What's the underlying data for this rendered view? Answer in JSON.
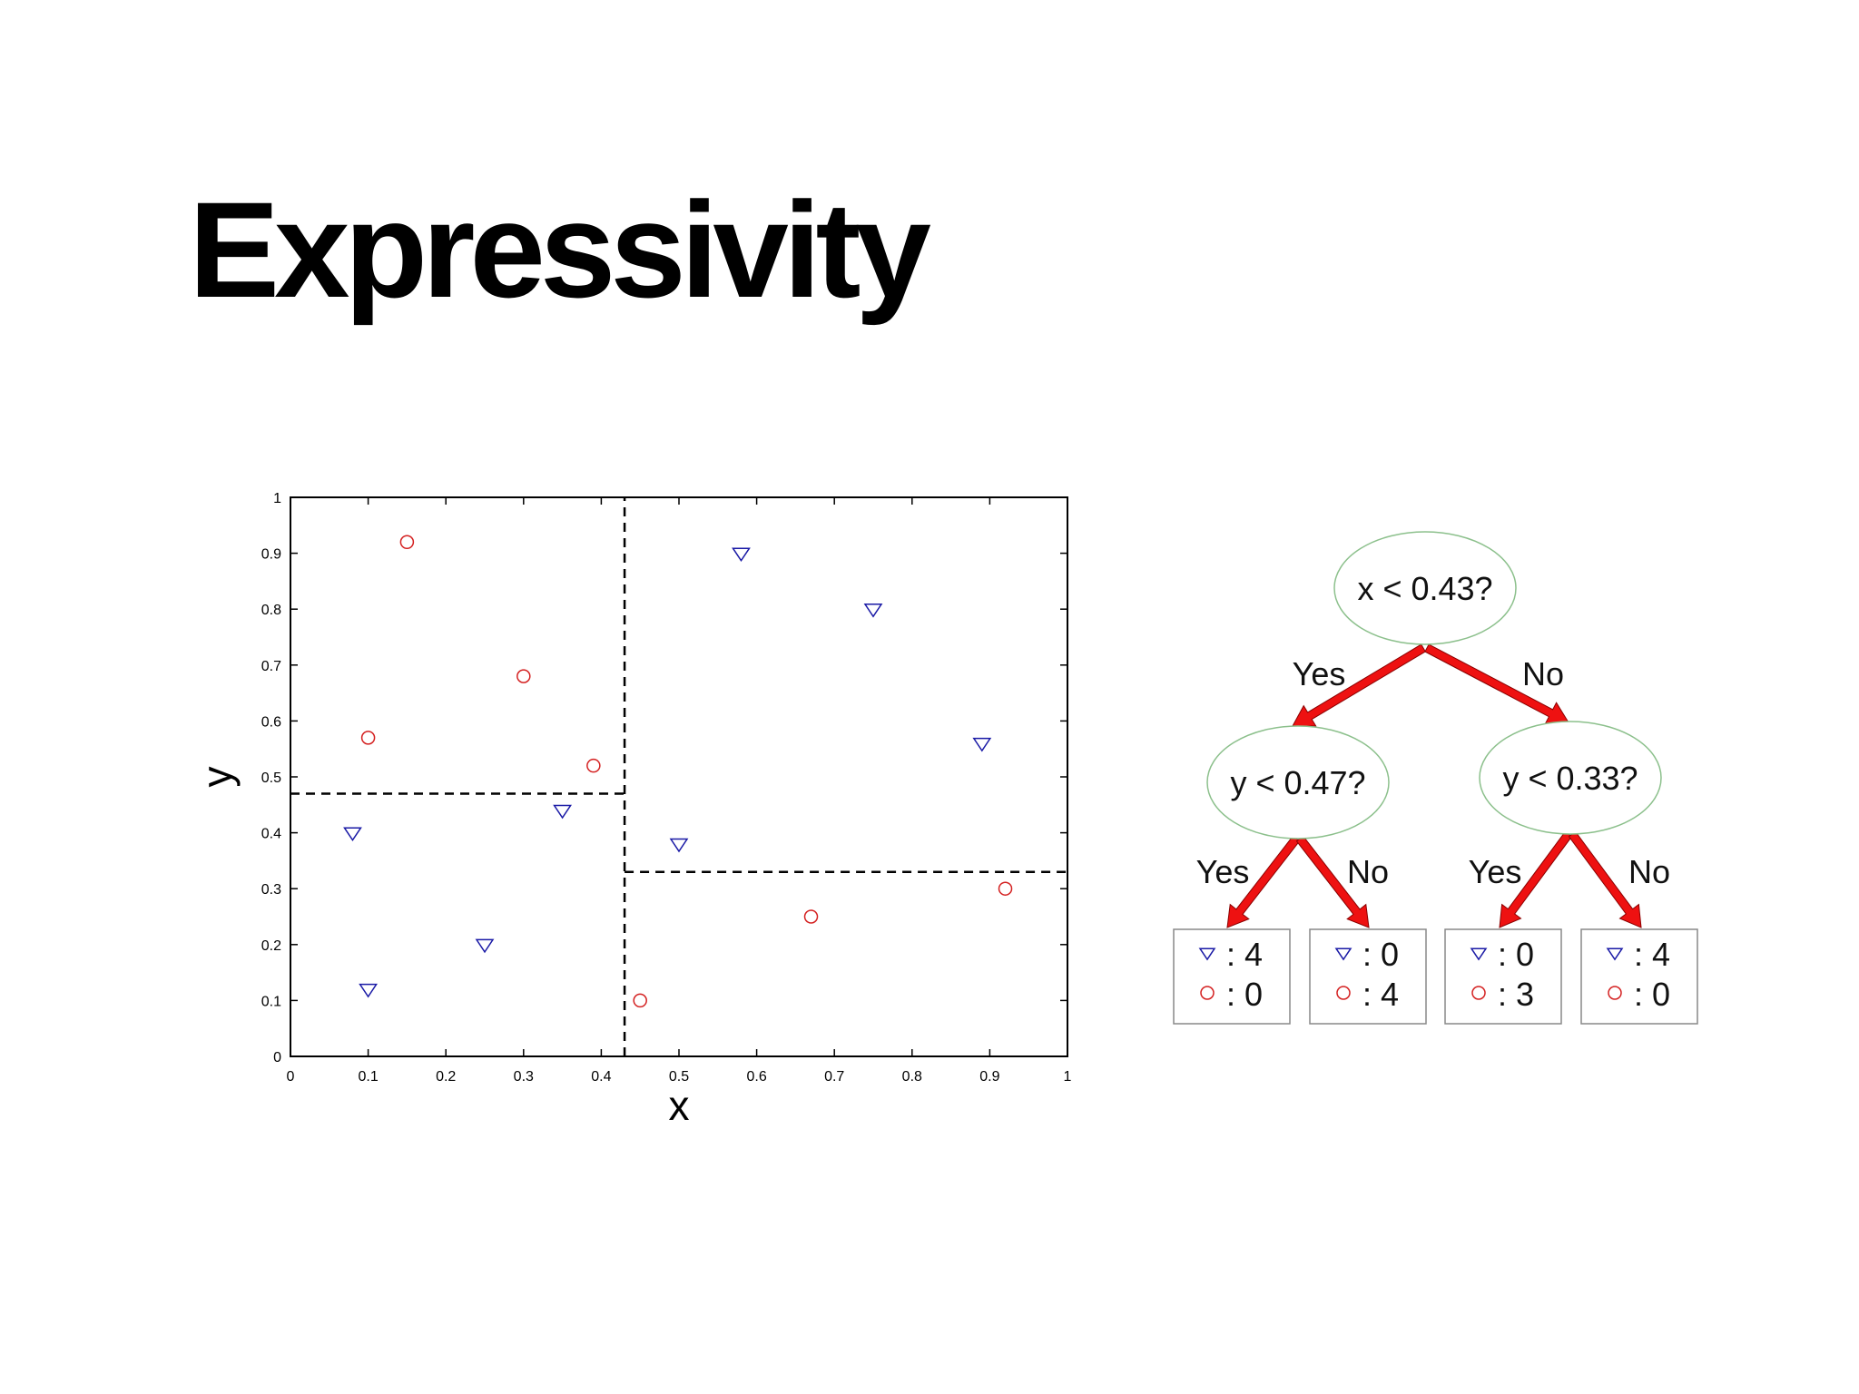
{
  "slide": {
    "title": "Expressivity"
  },
  "chart_data": {
    "type": "scatter",
    "xlabel": "x",
    "ylabel": "y",
    "xlim": [
      0,
      1
    ],
    "ylim": [
      0,
      1
    ],
    "xticks": [
      "0",
      "0.1",
      "0.2",
      "0.3",
      "0.4",
      "0.5",
      "0.6",
      "0.7",
      "0.8",
      "0.9",
      "1"
    ],
    "yticks": [
      "0",
      "0.1",
      "0.2",
      "0.3",
      "0.4",
      "0.5",
      "0.6",
      "0.7",
      "0.8",
      "0.9",
      "1"
    ],
    "grid": false,
    "series": [
      {
        "marker": "triangle-down",
        "color": "#1a1aa6",
        "points": [
          [
            0.08,
            0.4
          ],
          [
            0.1,
            0.12
          ],
          [
            0.25,
            0.2
          ],
          [
            0.35,
            0.44
          ],
          [
            0.5,
            0.38
          ],
          [
            0.58,
            0.9
          ],
          [
            0.75,
            0.8
          ],
          [
            0.89,
            0.56
          ]
        ]
      },
      {
        "marker": "circle",
        "color": "#d42020",
        "points": [
          [
            0.15,
            0.92
          ],
          [
            0.1,
            0.57
          ],
          [
            0.3,
            0.68
          ],
          [
            0.39,
            0.52
          ],
          [
            0.45,
            0.1
          ],
          [
            0.67,
            0.25
          ],
          [
            0.92,
            0.3
          ]
        ]
      }
    ],
    "split_lines": [
      {
        "orientation": "vertical",
        "x": 0.43,
        "y_range": [
          0,
          1
        ]
      },
      {
        "orientation": "horizontal",
        "y": 0.47,
        "x_range": [
          0,
          0.43
        ]
      },
      {
        "orientation": "horizontal",
        "y": 0.33,
        "x_range": [
          0.43,
          1
        ]
      }
    ]
  },
  "tree": {
    "root": {
      "label": "x < 0.43?"
    },
    "left": {
      "label": "y < 0.47?"
    },
    "right": {
      "label": "y < 0.33?"
    },
    "edge_labels": {
      "yes": "Yes",
      "no": "No"
    },
    "edge_color": "#ee1111",
    "node_border_color": "#8cc08c",
    "leaves": [
      {
        "triangle": ": 4",
        "circle": ": 0"
      },
      {
        "triangle": ": 0",
        "circle": ": 4"
      },
      {
        "triangle": ": 0",
        "circle": ": 3"
      },
      {
        "triangle": ": 4",
        "circle": ": 0"
      }
    ]
  }
}
